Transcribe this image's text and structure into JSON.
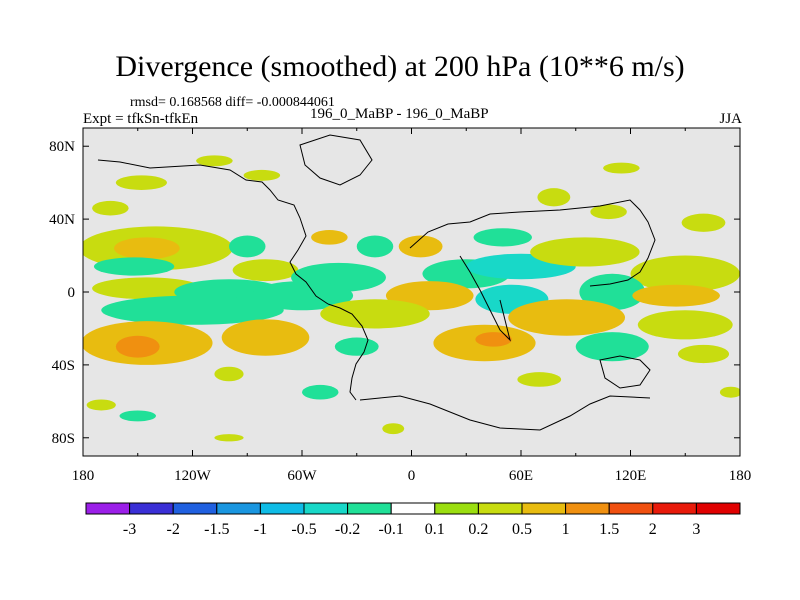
{
  "chart_data": {
    "type": "heatmap",
    "title": "Divergence (smoothed) at 200 hPa (10**6 m/s)",
    "stats_text": "rmsd= 0.168568 diff= -0.000844061",
    "left_label": "Expt = tfkSn-tfkEn",
    "center_label": "196_0_MaBP - 196_0_MaBP",
    "right_label": "JJA",
    "x_ticks": [
      "180",
      "120W",
      "60W",
      "0",
      "60E",
      "120E",
      "180"
    ],
    "x_tick_values": [
      -180,
      -120,
      -60,
      0,
      60,
      120,
      180
    ],
    "y_ticks": [
      "80N",
      "40N",
      "0",
      "40S",
      "80S"
    ],
    "y_tick_values": [
      80,
      40,
      0,
      -40,
      -80
    ],
    "xlim": [
      -180,
      180
    ],
    "ylim": [
      -90,
      90
    ],
    "colorbar": {
      "labels": [
        "-3",
        "-2",
        "-1.5",
        "-1",
        "-0.5",
        "-0.2",
        "-0.1",
        "0.1",
        "0.2",
        "0.5",
        "1",
        "1.5",
        "2",
        "3"
      ],
      "colors": [
        "#9b1fe8",
        "#3a2fd6",
        "#2060e0",
        "#1a96e0",
        "#0fbce6",
        "#18d8c8",
        "#20e098",
        "#ffffff",
        "#9bde10",
        "#c8dc10",
        "#e8bc10",
        "#f09010",
        "#f05010",
        "#e81a0a",
        "#e00000"
      ]
    },
    "background_color": "#e6e6e6",
    "blobs": [
      {
        "lon": -148,
        "lat": 60,
        "rx": 14,
        "ry": 4,
        "value": 0.2
      },
      {
        "lon": -82,
        "lat": 64,
        "rx": 10,
        "ry": 3,
        "value": 0.2
      },
      {
        "lon": -108,
        "lat": 72,
        "rx": 10,
        "ry": 3,
        "value": 0.2
      },
      {
        "lon": -165,
        "lat": 46,
        "rx": 10,
        "ry": 4,
        "value": 0.2
      },
      {
        "lon": 78,
        "lat": 52,
        "rx": 9,
        "ry": 5,
        "value": 0.2
      },
      {
        "lon": 115,
        "lat": 68,
        "rx": 10,
        "ry": 3,
        "value": 0.2
      },
      {
        "lon": 108,
        "lat": 44,
        "rx": 10,
        "ry": 4,
        "value": 0.2
      },
      {
        "lon": 160,
        "lat": 38,
        "rx": 12,
        "ry": 5,
        "value": 0.2
      },
      {
        "lon": -45,
        "lat": 30,
        "rx": 10,
        "ry": 4,
        "value": 0.5
      },
      {
        "lon": 5,
        "lat": 25,
        "rx": 12,
        "ry": 6,
        "value": 0.5
      },
      {
        "lon": -168,
        "lat": 22,
        "rx": 12,
        "ry": 5,
        "value": 0.5
      },
      {
        "lon": -125,
        "lat": 20,
        "rx": 10,
        "ry": 5,
        "value": 0.5
      },
      {
        "lon": -140,
        "lat": 24,
        "rx": 42,
        "ry": 12,
        "value": 0.2
      },
      {
        "lon": -145,
        "lat": 24,
        "rx": 18,
        "ry": 6,
        "value": 0.5
      },
      {
        "lon": -152,
        "lat": 14,
        "rx": 22,
        "ry": 5,
        "value": -0.2
      },
      {
        "lon": -80,
        "lat": 12,
        "rx": 18,
        "ry": 6,
        "value": 0.2
      },
      {
        "lon": -40,
        "lat": 8,
        "rx": 26,
        "ry": 8,
        "value": -0.2
      },
      {
        "lon": 30,
        "lat": 10,
        "rx": 24,
        "ry": 8,
        "value": -0.2
      },
      {
        "lon": 60,
        "lat": 14,
        "rx": 30,
        "ry": 7,
        "value": -0.5
      },
      {
        "lon": 95,
        "lat": 22,
        "rx": 30,
        "ry": 8,
        "value": 0.2
      },
      {
        "lon": 150,
        "lat": 10,
        "rx": 30,
        "ry": 10,
        "value": 0.2
      },
      {
        "lon": -145,
        "lat": 2,
        "rx": 30,
        "ry": 6,
        "value": 0.2
      },
      {
        "lon": -100,
        "lat": 0,
        "rx": 30,
        "ry": 7,
        "value": -0.2
      },
      {
        "lon": -60,
        "lat": -2,
        "rx": 28,
        "ry": 8,
        "value": -0.2
      },
      {
        "lon": 10,
        "lat": -2,
        "rx": 24,
        "ry": 8,
        "value": 0.5
      },
      {
        "lon": 55,
        "lat": -4,
        "rx": 20,
        "ry": 8,
        "value": -0.5
      },
      {
        "lon": 110,
        "lat": 0,
        "rx": 18,
        "ry": 10,
        "value": -0.2
      },
      {
        "lon": 145,
        "lat": -2,
        "rx": 24,
        "ry": 6,
        "value": 0.5
      },
      {
        "lon": -120,
        "lat": -10,
        "rx": 50,
        "ry": 8,
        "value": -0.2
      },
      {
        "lon": -20,
        "lat": -12,
        "rx": 30,
        "ry": 8,
        "value": 0.2
      },
      {
        "lon": 85,
        "lat": -14,
        "rx": 32,
        "ry": 10,
        "value": 0.5
      },
      {
        "lon": 150,
        "lat": -18,
        "rx": 26,
        "ry": 8,
        "value": 0.2
      },
      {
        "lon": -145,
        "lat": -28,
        "rx": 36,
        "ry": 12,
        "value": 0.5
      },
      {
        "lon": -150,
        "lat": -30,
        "rx": 12,
        "ry": 6,
        "value": 1.0
      },
      {
        "lon": -80,
        "lat": -25,
        "rx": 24,
        "ry": 10,
        "value": 0.5
      },
      {
        "lon": -30,
        "lat": -30,
        "rx": 12,
        "ry": 5,
        "value": -0.2
      },
      {
        "lon": 40,
        "lat": -28,
        "rx": 28,
        "ry": 10,
        "value": 0.5
      },
      {
        "lon": 45,
        "lat": -26,
        "rx": 10,
        "ry": 4,
        "value": 1.0
      },
      {
        "lon": 110,
        "lat": -30,
        "rx": 20,
        "ry": 8,
        "value": -0.2
      },
      {
        "lon": -100,
        "lat": -45,
        "rx": 8,
        "ry": 4,
        "value": 0.2
      },
      {
        "lon": 70,
        "lat": -48,
        "rx": 12,
        "ry": 4,
        "value": 0.2
      },
      {
        "lon": 160,
        "lat": -34,
        "rx": 14,
        "ry": 5,
        "value": 0.2
      },
      {
        "lon": -170,
        "lat": -62,
        "rx": 8,
        "ry": 3,
        "value": 0.2
      },
      {
        "lon": -150,
        "lat": -68,
        "rx": 10,
        "ry": 3,
        "value": -0.2
      },
      {
        "lon": -50,
        "lat": -55,
        "rx": 10,
        "ry": 4,
        "value": -0.2
      },
      {
        "lon": -10,
        "lat": -75,
        "rx": 6,
        "ry": 3,
        "value": 0.2
      },
      {
        "lon": 175,
        "lat": -55,
        "rx": 6,
        "ry": 3,
        "value": 0.2
      },
      {
        "lon": -100,
        "lat": -80,
        "rx": 8,
        "ry": 2,
        "value": 0.2
      },
      {
        "lon": -90,
        "lat": 25,
        "rx": 10,
        "ry": 6,
        "value": -0.2
      },
      {
        "lon": -20,
        "lat": 25,
        "rx": 10,
        "ry": 6,
        "value": -0.2
      },
      {
        "lon": 50,
        "lat": 30,
        "rx": 16,
        "ry": 5,
        "value": -0.2
      }
    ]
  }
}
